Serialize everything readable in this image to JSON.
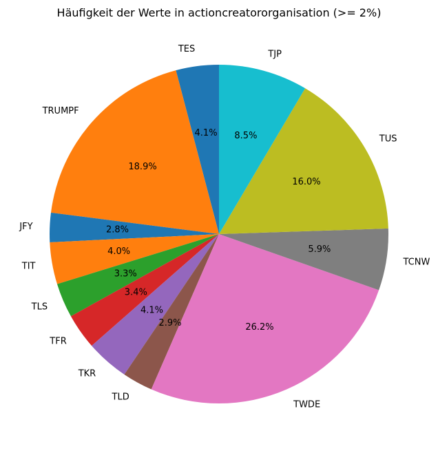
{
  "chart_data": {
    "type": "pie",
    "title": "Häufigkeit der Werte in actioncreatororganisation (>= 2%)",
    "slices": [
      {
        "label": "TES",
        "value": 4.1,
        "pct_label": "4.1%",
        "color": "#1f77b4"
      },
      {
        "label": "TRUMPF",
        "value": 18.9,
        "pct_label": "18.9%",
        "color": "#ff7f0e"
      },
      {
        "label": "JFY",
        "value": 2.8,
        "pct_label": "2.8%",
        "color": "#1f77b4"
      },
      {
        "label": "TIT",
        "value": 4.0,
        "pct_label": "4.0%",
        "color": "#ff7f0e"
      },
      {
        "label": "TLS",
        "value": 3.3,
        "pct_label": "3.3%",
        "color": "#2ca02c"
      },
      {
        "label": "TFR",
        "value": 3.4,
        "pct_label": "3.4%",
        "color": "#d62728"
      },
      {
        "label": "TKR",
        "value": 4.1,
        "pct_label": "4.1%",
        "color": "#9467bd"
      },
      {
        "label": "TLD",
        "value": 2.9,
        "pct_label": "2.9%",
        "color": "#8c564b"
      },
      {
        "label": "TWDE",
        "value": 26.2,
        "pct_label": "26.2%",
        "color": "#e377c2"
      },
      {
        "label": "TCNW",
        "value": 5.9,
        "pct_label": "5.9%",
        "color": "#7f7f7f"
      },
      {
        "label": "TUS",
        "value": 16.0,
        "pct_label": "16.0%",
        "color": "#bcbd22"
      },
      {
        "label": "TJP",
        "value": 8.5,
        "pct_label": "8.5%",
        "color": "#17becf"
      }
    ],
    "start": "12 o'clock",
    "direction": "counterclockwise",
    "legend": "none",
    "grid": false
  }
}
